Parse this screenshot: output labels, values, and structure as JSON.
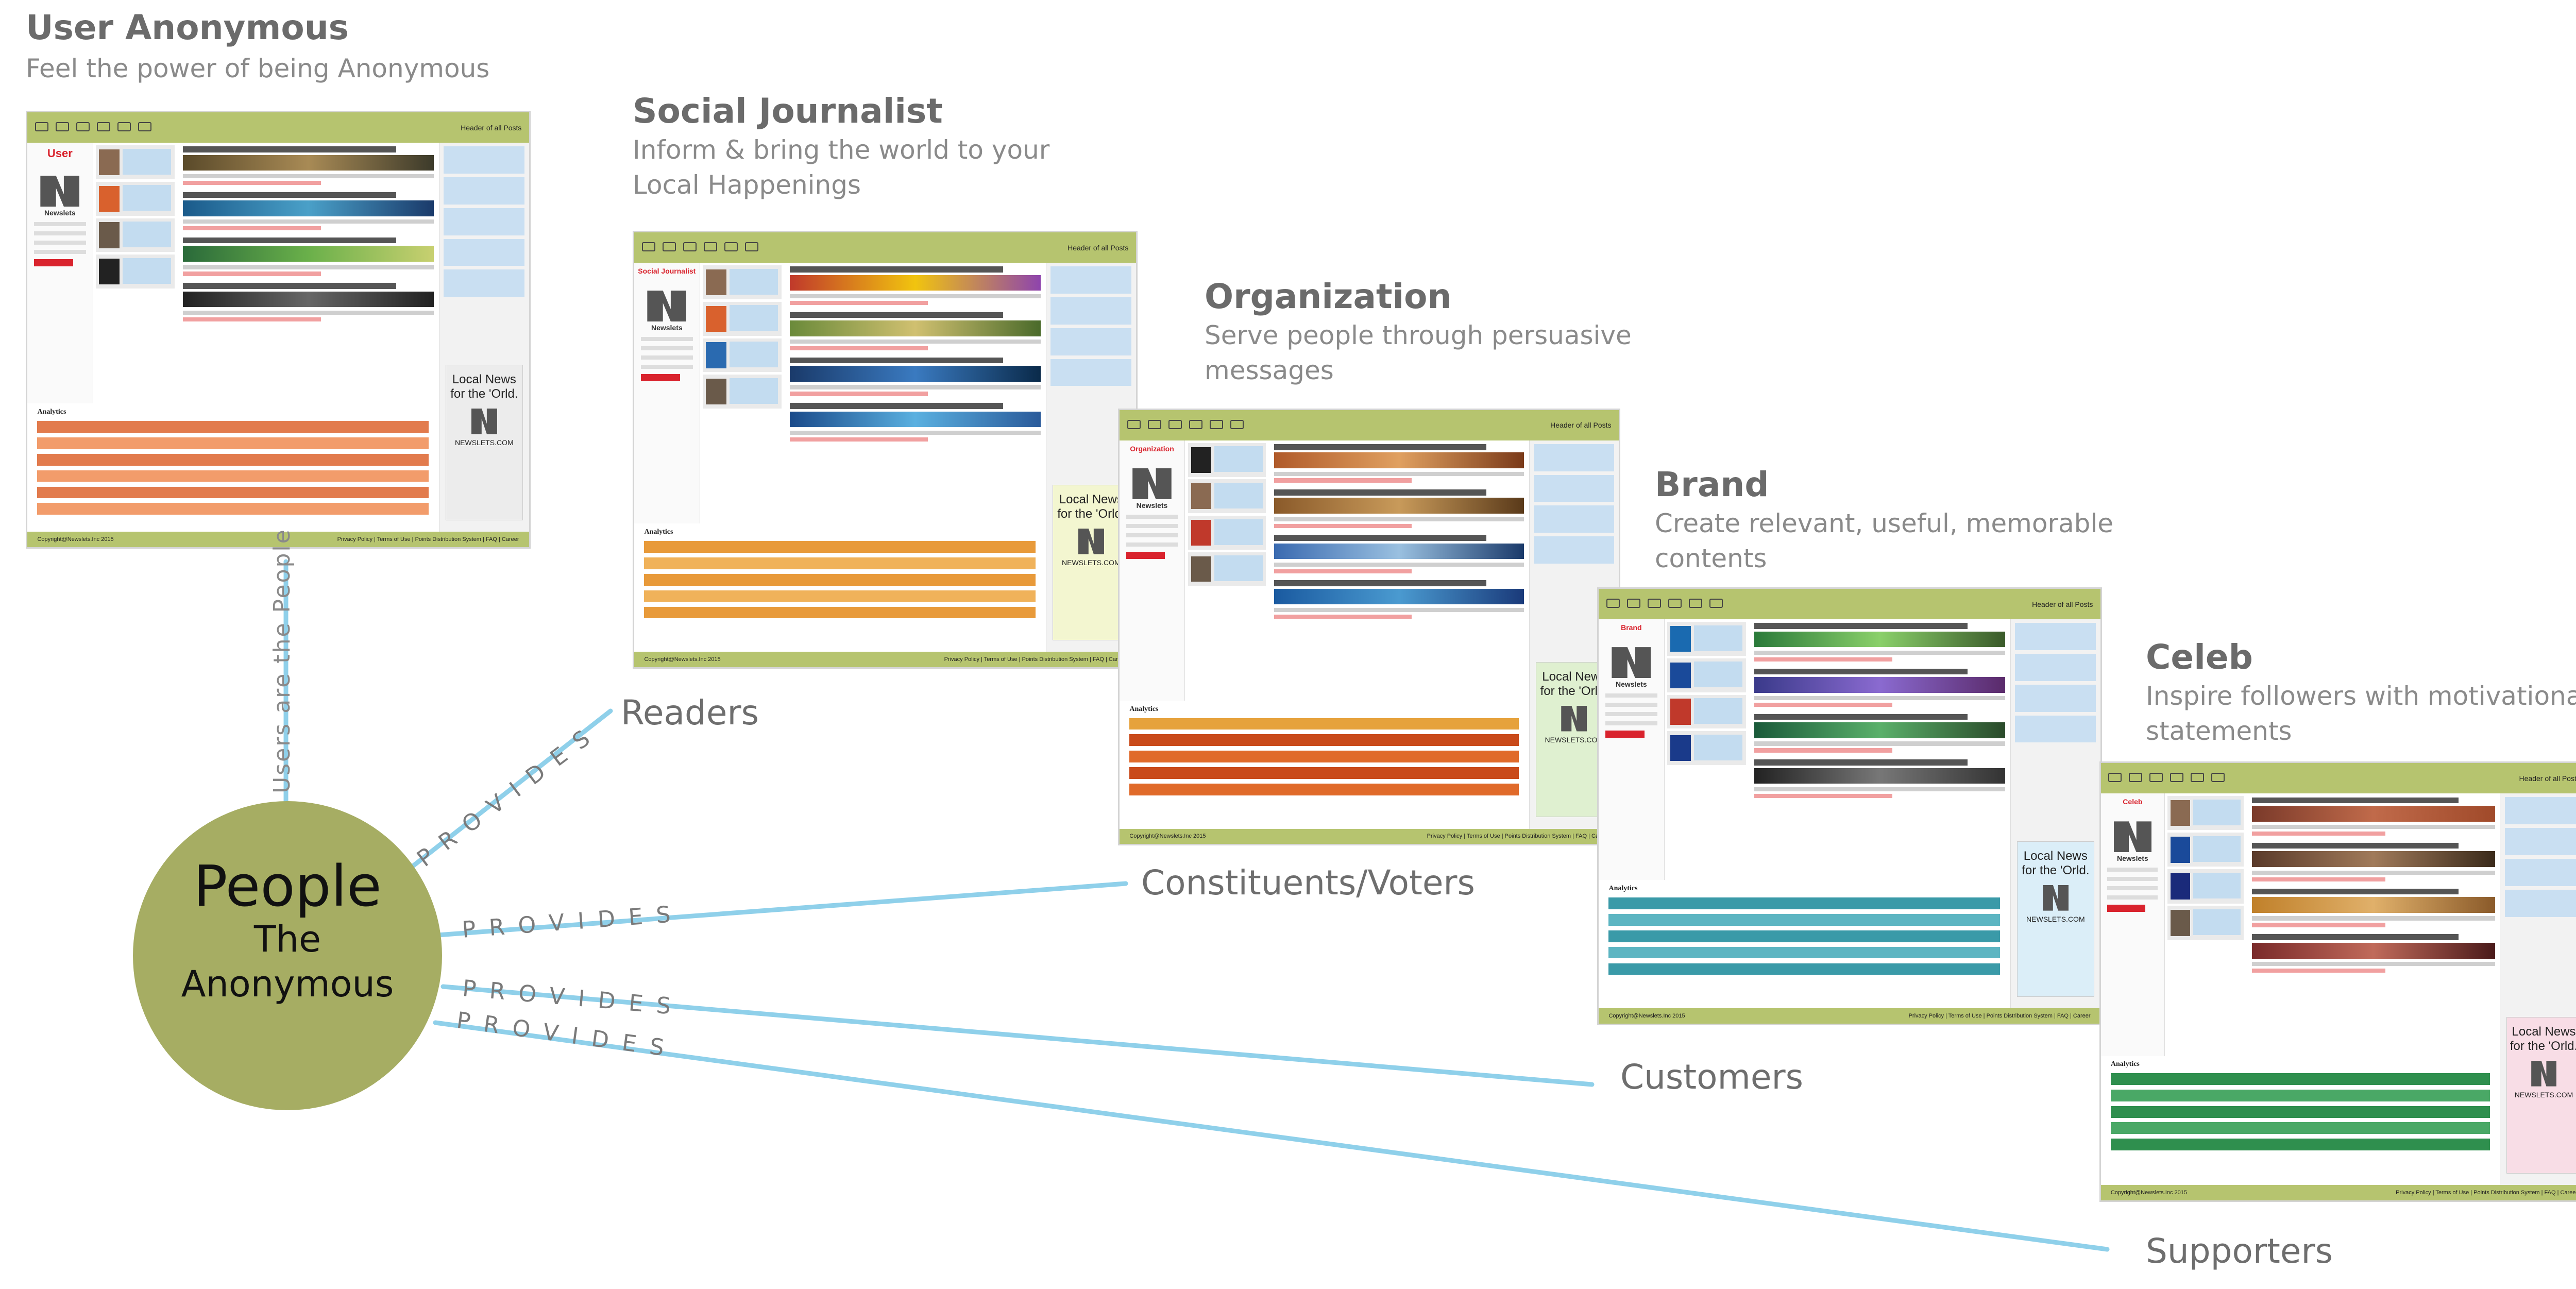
{
  "roles": [
    {
      "title": "User Anonymous",
      "subtitle": "Feel the power of being Anonymous"
    },
    {
      "title": "Social Journalist",
      "subtitle_lines": [
        "Inform & bring the world to your",
        "Local Happenings"
      ]
    },
    {
      "title": "Organization",
      "subtitle_lines": [
        "Serve people through persuasive",
        "messages"
      ]
    },
    {
      "title": "Brand",
      "subtitle_lines": [
        "Create relevant, useful, memorable",
        "contents"
      ]
    },
    {
      "title": "Celeb",
      "subtitle_lines": [
        "Inspire followers with motivational",
        "statements"
      ]
    }
  ],
  "center": {
    "line1": "People",
    "line2": "The",
    "line3": "Anonymous"
  },
  "vertical_label": "Users are the People",
  "provides_label": "PROVIDES",
  "audiences": [
    "Readers",
    "Constituents/Voters",
    "Customers",
    "Supporters"
  ],
  "screen": {
    "header_right": "Header of all Posts",
    "footer_left": "Copyright@Newslets.Inc 2015",
    "footer_right": "Privacy Policy | Terms of Use | Points Distribution System | FAQ | Career",
    "brand": "Newslets",
    "ad_line1": "Local News",
    "ad_line2": "for the 'Orld.",
    "ad_site": "NEWSLETS.COM",
    "analytics_title": "Analytics",
    "left_titles": [
      "User",
      "Social Journalist",
      "Organization",
      "Brand",
      "Celeb"
    ]
  },
  "colors": {
    "line": "#8fd0ea",
    "circle": "#a6ad63",
    "header_bar": "#b6c46f",
    "accent_red": "#d9232d"
  }
}
